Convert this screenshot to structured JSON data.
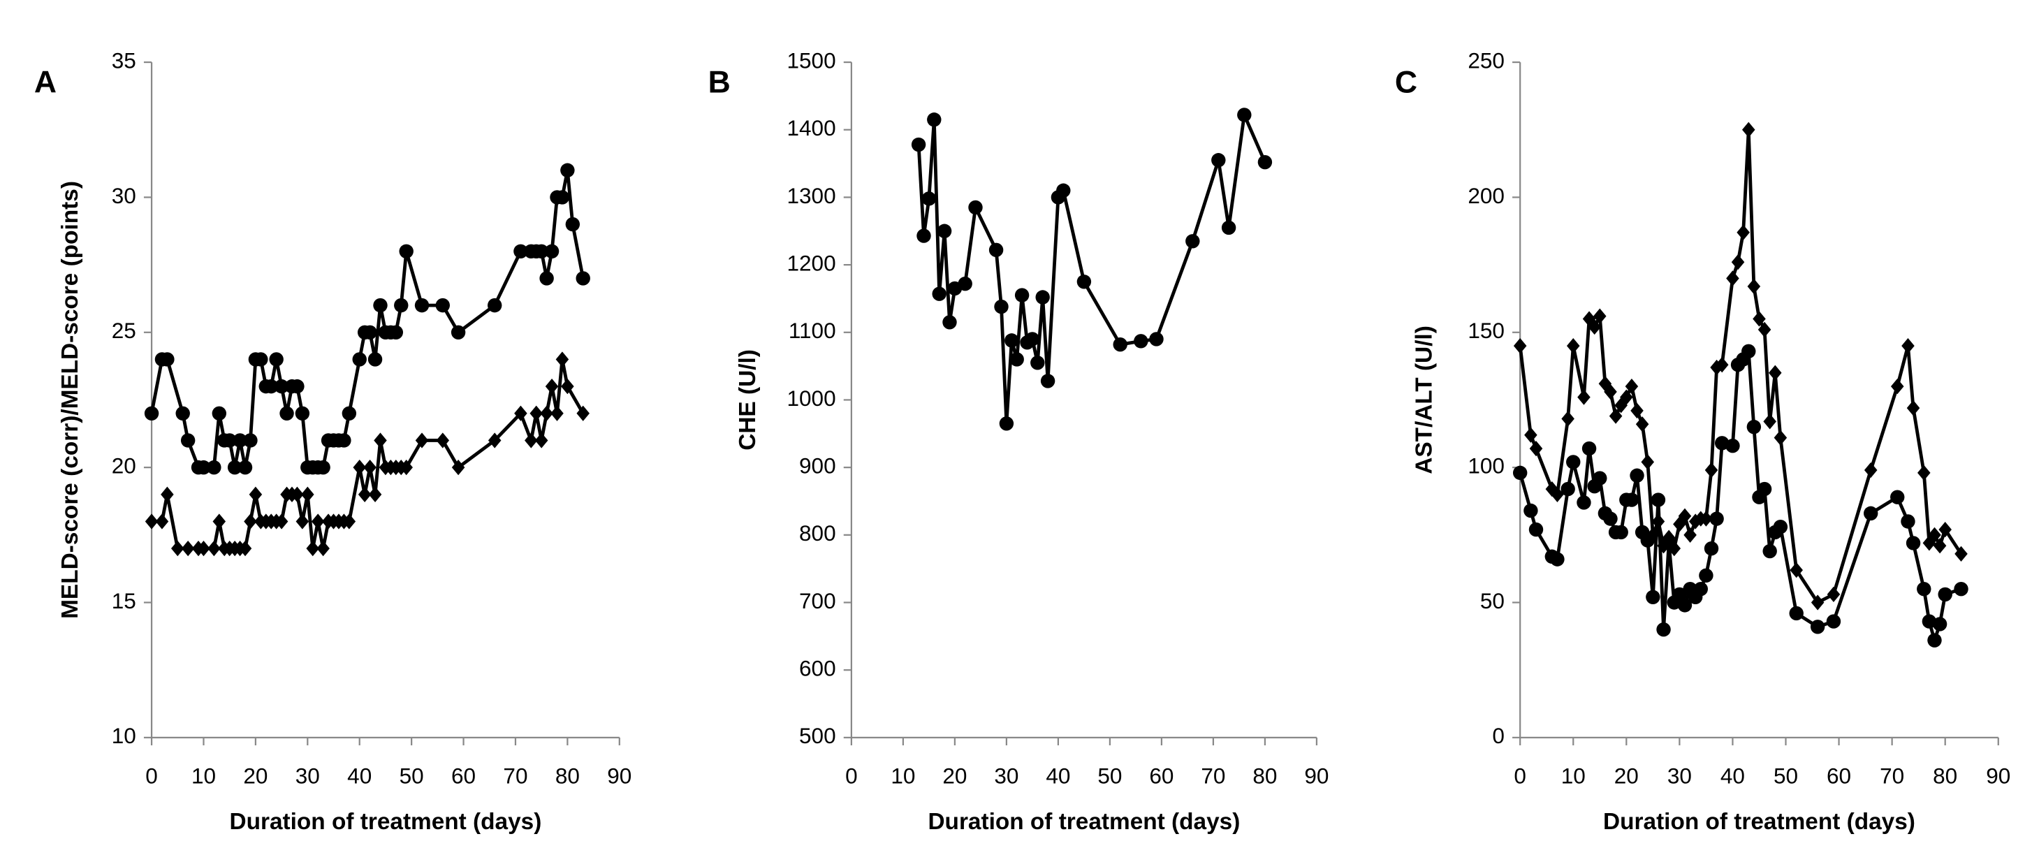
{
  "chart_data": [
    {
      "type": "line",
      "panel": "A",
      "x_label": "Duration of treatment (days)",
      "y_label": "MELD-score (corr)/MELD-score (points)",
      "xlim": [
        0,
        90
      ],
      "xticks": [
        0,
        10,
        20,
        30,
        40,
        50,
        60,
        70,
        80,
        90
      ],
      "ylim": [
        10,
        35
      ],
      "yticks": [
        10,
        15,
        20,
        25,
        30,
        35
      ],
      "series": [
        {
          "color": "#000000",
          "marker": "circle",
          "x": [
            0,
            2,
            3,
            6,
            7,
            9,
            10,
            12,
            13,
            14,
            15,
            16,
            17,
            18,
            19,
            20,
            21,
            22,
            23,
            24,
            25,
            26,
            27,
            28,
            29,
            30,
            31,
            32,
            33,
            34,
            35,
            36,
            37,
            38,
            40,
            41,
            42,
            43,
            44,
            45,
            46,
            47,
            48,
            49,
            52,
            56,
            59,
            66,
            71,
            73,
            74,
            75,
            76,
            77,
            78,
            79,
            80,
            81,
            83
          ],
          "values": [
            22,
            24,
            24,
            22,
            21,
            20,
            20,
            20,
            22,
            21,
            21,
            20,
            21,
            20,
            21,
            24,
            24,
            23,
            23,
            24,
            23,
            22,
            23,
            23,
            22,
            20,
            20,
            20,
            20,
            21,
            21,
            21,
            21,
            22,
            24,
            25,
            25,
            24,
            26,
            25,
            25,
            25,
            26,
            28,
            26,
            26,
            25,
            26,
            28,
            28,
            28,
            28,
            27,
            28,
            30,
            30,
            31,
            29,
            27
          ]
        },
        {
          "color": "#000000",
          "marker": "diamond",
          "x": [
            0,
            2,
            3,
            5,
            7,
            9,
            10,
            12,
            13,
            14,
            15,
            16,
            17,
            18,
            19,
            20,
            21,
            22,
            23,
            24,
            25,
            26,
            27,
            28,
            29,
            30,
            31,
            32,
            33,
            34,
            35,
            36,
            37,
            38,
            40,
            41,
            42,
            43,
            44,
            45,
            46,
            47,
            48,
            49,
            52,
            56,
            59,
            66,
            71,
            73,
            74,
            75,
            76,
            77,
            78,
            79,
            80,
            83
          ],
          "values": [
            18,
            18,
            19,
            17,
            17,
            17,
            17,
            17,
            18,
            17,
            17,
            17,
            17,
            17,
            18,
            19,
            18,
            18,
            18,
            18,
            18,
            19,
            19,
            19,
            18,
            19,
            17,
            18,
            17,
            18,
            18,
            18,
            18,
            18,
            20,
            19,
            20,
            19,
            21,
            20,
            20,
            20,
            20,
            20,
            21,
            21,
            20,
            21,
            22,
            21,
            22,
            21,
            22,
            23,
            22,
            24,
            23,
            22
          ]
        }
      ]
    },
    {
      "type": "line",
      "panel": "B",
      "x_label": "Duration of treatment (days)",
      "y_label": "CHE (U/l)",
      "xlim": [
        0,
        90
      ],
      "xticks": [
        0,
        10,
        20,
        30,
        40,
        50,
        60,
        70,
        80,
        90
      ],
      "ylim": [
        500,
        1500
      ],
      "yticks": [
        500,
        600,
        700,
        800,
        900,
        1000,
        1100,
        1200,
        1300,
        1400,
        1500
      ],
      "series": [
        {
          "color": "#000000",
          "marker": "circle",
          "x": [
            13,
            14,
            15,
            16,
            17,
            18,
            19,
            20,
            22,
            24,
            28,
            29,
            30,
            31,
            32,
            33,
            34,
            35,
            36,
            37,
            38,
            40,
            41,
            45,
            52,
            56,
            59,
            66,
            71,
            73,
            76,
            80
          ],
          "values": [
            1378,
            1243,
            1298,
            1415,
            1157,
            1250,
            1115,
            1165,
            1172,
            1285,
            1222,
            1138,
            965,
            1088,
            1060,
            1155,
            1085,
            1090,
            1055,
            1152,
            1028,
            1300,
            1310,
            1175,
            1082,
            1087,
            1090,
            1235,
            1355,
            1255,
            1422,
            1352
          ]
        }
      ]
    },
    {
      "type": "line",
      "panel": "C",
      "x_label": "Duration of treatment (days)",
      "y_label": "AST/ALT (U/l)",
      "xlim": [
        0,
        90
      ],
      "xticks": [
        0,
        10,
        20,
        30,
        40,
        50,
        60,
        70,
        80,
        90
      ],
      "ylim": [
        0,
        250
      ],
      "yticks": [
        0,
        50,
        100,
        150,
        200,
        250
      ],
      "series": [
        {
          "color": "#000000",
          "marker": "diamond",
          "x": [
            0,
            2,
            3,
            6,
            7,
            9,
            10,
            12,
            13,
            14,
            15,
            16,
            17,
            18,
            19,
            20,
            21,
            22,
            23,
            24,
            25,
            26,
            27,
            28,
            29,
            30,
            31,
            32,
            33,
            34,
            35,
            36,
            37,
            38,
            40,
            41,
            42,
            43,
            44,
            45,
            46,
            47,
            48,
            49,
            52,
            56,
            59,
            66,
            71,
            73,
            74,
            76,
            77,
            78,
            79,
            80,
            83
          ],
          "values": [
            145,
            112,
            107,
            92,
            90,
            118,
            145,
            126,
            155,
            152,
            156,
            131,
            128,
            119,
            123,
            126,
            130,
            121,
            116,
            102,
            75,
            80,
            71,
            74,
            70,
            79,
            82,
            75,
            80,
            81,
            81,
            99,
            137,
            138,
            170,
            176,
            187,
            225,
            167,
            155,
            151,
            117,
            135,
            111,
            62,
            50,
            53,
            99,
            130,
            145,
            122,
            98,
            72,
            75,
            71,
            77,
            68
          ]
        },
        {
          "color": "#000000",
          "marker": "circle",
          "x": [
            0,
            2,
            3,
            6,
            7,
            9,
            10,
            12,
            13,
            14,
            15,
            16,
            17,
            18,
            19,
            20,
            21,
            22,
            23,
            24,
            25,
            26,
            27,
            28,
            29,
            30,
            31,
            32,
            33,
            34,
            35,
            36,
            37,
            38,
            40,
            41,
            42,
            43,
            44,
            45,
            46,
            47,
            48,
            49,
            52,
            56,
            59,
            66,
            71,
            73,
            74,
            76,
            77,
            78,
            79,
            80,
            83
          ],
          "values": [
            98,
            84,
            77,
            67,
            66,
            92,
            102,
            87,
            107,
            93,
            96,
            83,
            81,
            76,
            76,
            88,
            88,
            97,
            76,
            73,
            52,
            88,
            40,
            72,
            50,
            53,
            49,
            55,
            52,
            55,
            60,
            70,
            81,
            109,
            108,
            138,
            140,
            143,
            115,
            89,
            92,
            69,
            76,
            78,
            46,
            41,
            43,
            83,
            89,
            80,
            72,
            55,
            43,
            36,
            42,
            53,
            55
          ]
        }
      ]
    }
  ]
}
